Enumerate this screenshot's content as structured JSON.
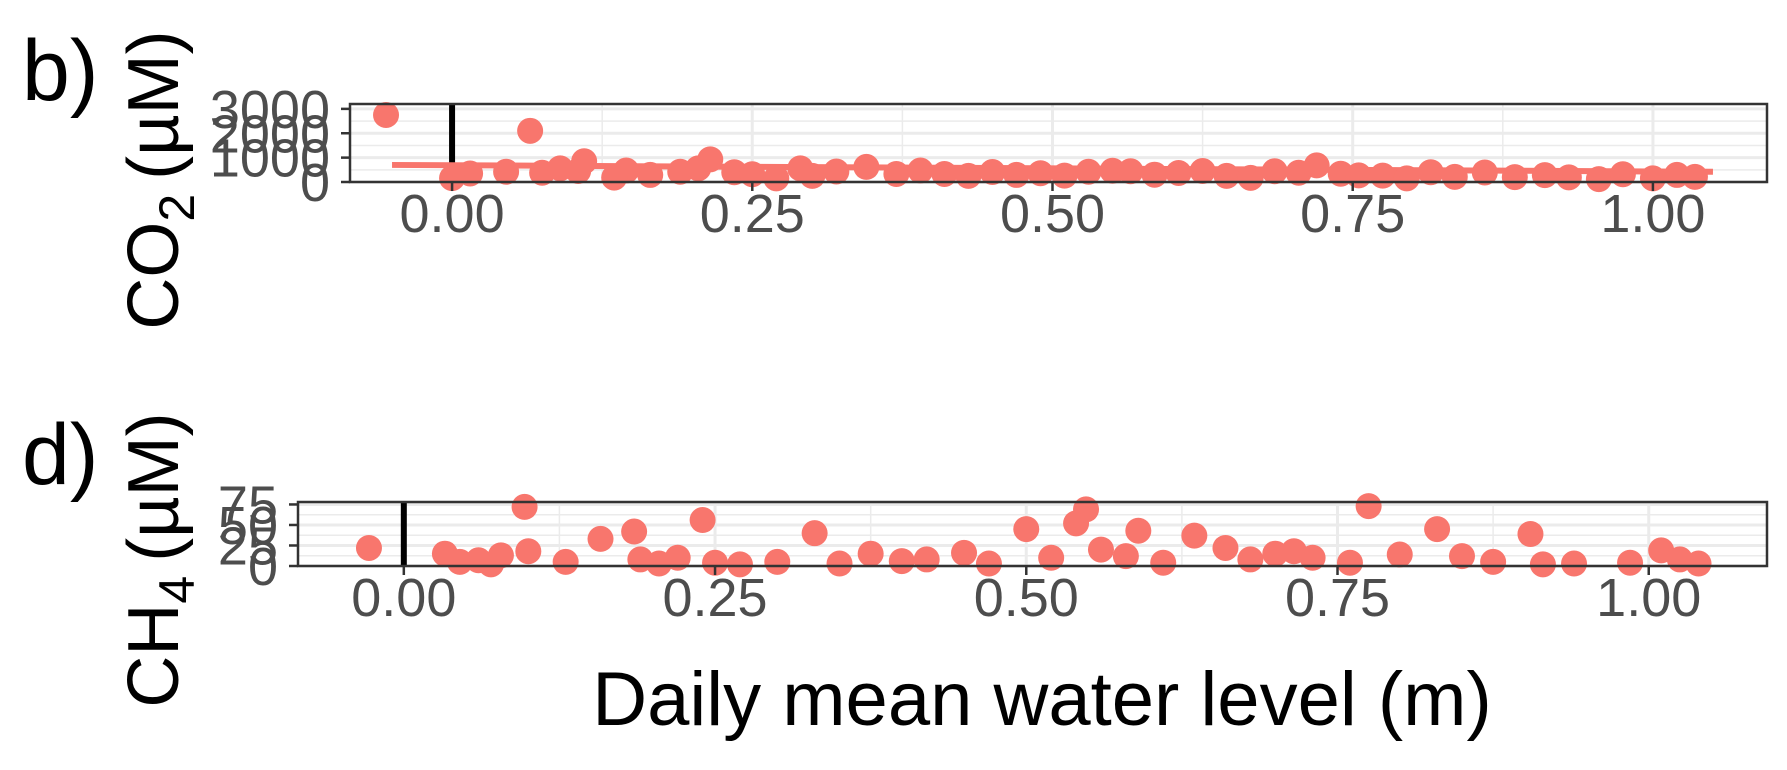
{
  "colors": {
    "points": "#f8766d",
    "vline": "#000000",
    "grid": "#ebebeb",
    "frame": "#333333"
  },
  "chart_data": [
    {
      "type": "scatter",
      "tag": "b)",
      "ylabel": {
        "main": "CO",
        "sub": "2",
        "unit": "(µM)"
      },
      "xlim": [
        -0.085,
        1.095
      ],
      "ylim": [
        0,
        3200
      ],
      "vline_x": 0,
      "x_ticks": [
        "0.00",
        "0.25",
        "0.50",
        "0.75",
        "1.00"
      ],
      "x_tick_values": [
        0,
        0.25,
        0.5,
        0.75,
        1.0
      ],
      "y_ticks": [
        "0",
        "1000",
        "2000",
        "3000"
      ],
      "y_tick_values": [
        0,
        1000,
        2000,
        3000
      ],
      "trend": {
        "x": [
          -0.05,
          1.05
        ],
        "y": [
          700,
          420
        ]
      },
      "points": [
        [
          -0.055,
          2750
        ],
        [
          0.065,
          2100
        ],
        [
          0.015,
          350
        ],
        [
          0.045,
          420
        ],
        [
          0.075,
          380
        ],
        [
          0.09,
          560
        ],
        [
          0.105,
          450
        ],
        [
          0.11,
          850
        ],
        [
          0.145,
          470
        ],
        [
          0.165,
          290
        ],
        [
          0.19,
          420
        ],
        [
          0.205,
          560
        ],
        [
          0.215,
          930
        ],
        [
          0.235,
          400
        ],
        [
          0.25,
          320
        ],
        [
          0.27,
          150
        ],
        [
          0.29,
          560
        ],
        [
          0.32,
          430
        ],
        [
          0.345,
          620
        ],
        [
          0.37,
          330
        ],
        [
          0.39,
          470
        ],
        [
          0.41,
          330
        ],
        [
          0.43,
          250
        ],
        [
          0.45,
          410
        ],
        [
          0.47,
          290
        ],
        [
          0.49,
          360
        ],
        [
          0.51,
          260
        ],
        [
          0.53,
          420
        ],
        [
          0.55,
          460
        ],
        [
          0.565,
          440
        ],
        [
          0.585,
          300
        ],
        [
          0.605,
          370
        ],
        [
          0.625,
          450
        ],
        [
          0.645,
          250
        ],
        [
          0.665,
          170
        ],
        [
          0.685,
          440
        ],
        [
          0.705,
          380
        ],
        [
          0.72,
          680
        ],
        [
          0.74,
          340
        ],
        [
          0.755,
          270
        ],
        [
          0.775,
          260
        ],
        [
          0.795,
          150
        ],
        [
          0.815,
          400
        ],
        [
          0.835,
          210
        ],
        [
          0.86,
          390
        ],
        [
          0.885,
          200
        ],
        [
          0.91,
          280
        ],
        [
          0.93,
          190
        ],
        [
          0.955,
          120
        ],
        [
          0.975,
          320
        ],
        [
          1.0,
          150
        ],
        [
          1.02,
          290
        ],
        [
          1.035,
          210
        ],
        [
          0.0,
          160
        ],
        [
          0.135,
          180
        ],
        [
          0.3,
          250
        ]
      ]
    },
    {
      "type": "scatter",
      "tag": "d)",
      "ylabel": {
        "main": "CH",
        "sub": "4",
        "unit": "(µM)"
      },
      "xlim": [
        -0.085,
        1.095
      ],
      "ylim": [
        0,
        78
      ],
      "vline_x": 0,
      "x_ticks": [
        "0.00",
        "0.25",
        "0.50",
        "0.75",
        "1.00"
      ],
      "x_tick_values": [
        0,
        0.25,
        0.5,
        0.75,
        1.0
      ],
      "y_ticks": [
        "0",
        "25",
        "50",
        "75"
      ],
      "y_tick_values": [
        0,
        25,
        50,
        75
      ],
      "xlabel": "Daily mean water level (m)",
      "points": [
        [
          -0.028,
          22
        ],
        [
          0.033,
          15
        ],
        [
          0.045,
          5
        ],
        [
          0.07,
          2
        ],
        [
          0.078,
          13
        ],
        [
          0.097,
          72
        ],
        [
          0.1,
          18
        ],
        [
          0.13,
          5
        ],
        [
          0.158,
          33
        ],
        [
          0.185,
          42
        ],
        [
          0.19,
          8
        ],
        [
          0.205,
          3
        ],
        [
          0.24,
          56
        ],
        [
          0.25,
          4
        ],
        [
          0.27,
          2
        ],
        [
          0.3,
          5
        ],
        [
          0.33,
          40
        ],
        [
          0.35,
          3
        ],
        [
          0.375,
          15
        ],
        [
          0.4,
          6
        ],
        [
          0.42,
          8
        ],
        [
          0.45,
          16
        ],
        [
          0.47,
          3
        ],
        [
          0.5,
          45
        ],
        [
          0.52,
          10
        ],
        [
          0.54,
          52
        ],
        [
          0.548,
          69
        ],
        [
          0.56,
          20
        ],
        [
          0.58,
          12
        ],
        [
          0.59,
          43
        ],
        [
          0.61,
          4
        ],
        [
          0.635,
          37
        ],
        [
          0.66,
          22
        ],
        [
          0.68,
          8
        ],
        [
          0.7,
          15
        ],
        [
          0.715,
          18
        ],
        [
          0.73,
          10
        ],
        [
          0.76,
          4
        ],
        [
          0.775,
          73
        ],
        [
          0.8,
          14
        ],
        [
          0.83,
          45
        ],
        [
          0.85,
          12
        ],
        [
          0.875,
          5
        ],
        [
          0.905,
          39
        ],
        [
          0.915,
          2
        ],
        [
          0.94,
          3
        ],
        [
          0.985,
          4
        ],
        [
          1.01,
          19
        ],
        [
          1.025,
          8
        ],
        [
          1.04,
          3
        ],
        [
          0.06,
          7
        ],
        [
          0.22,
          10
        ]
      ]
    }
  ]
}
